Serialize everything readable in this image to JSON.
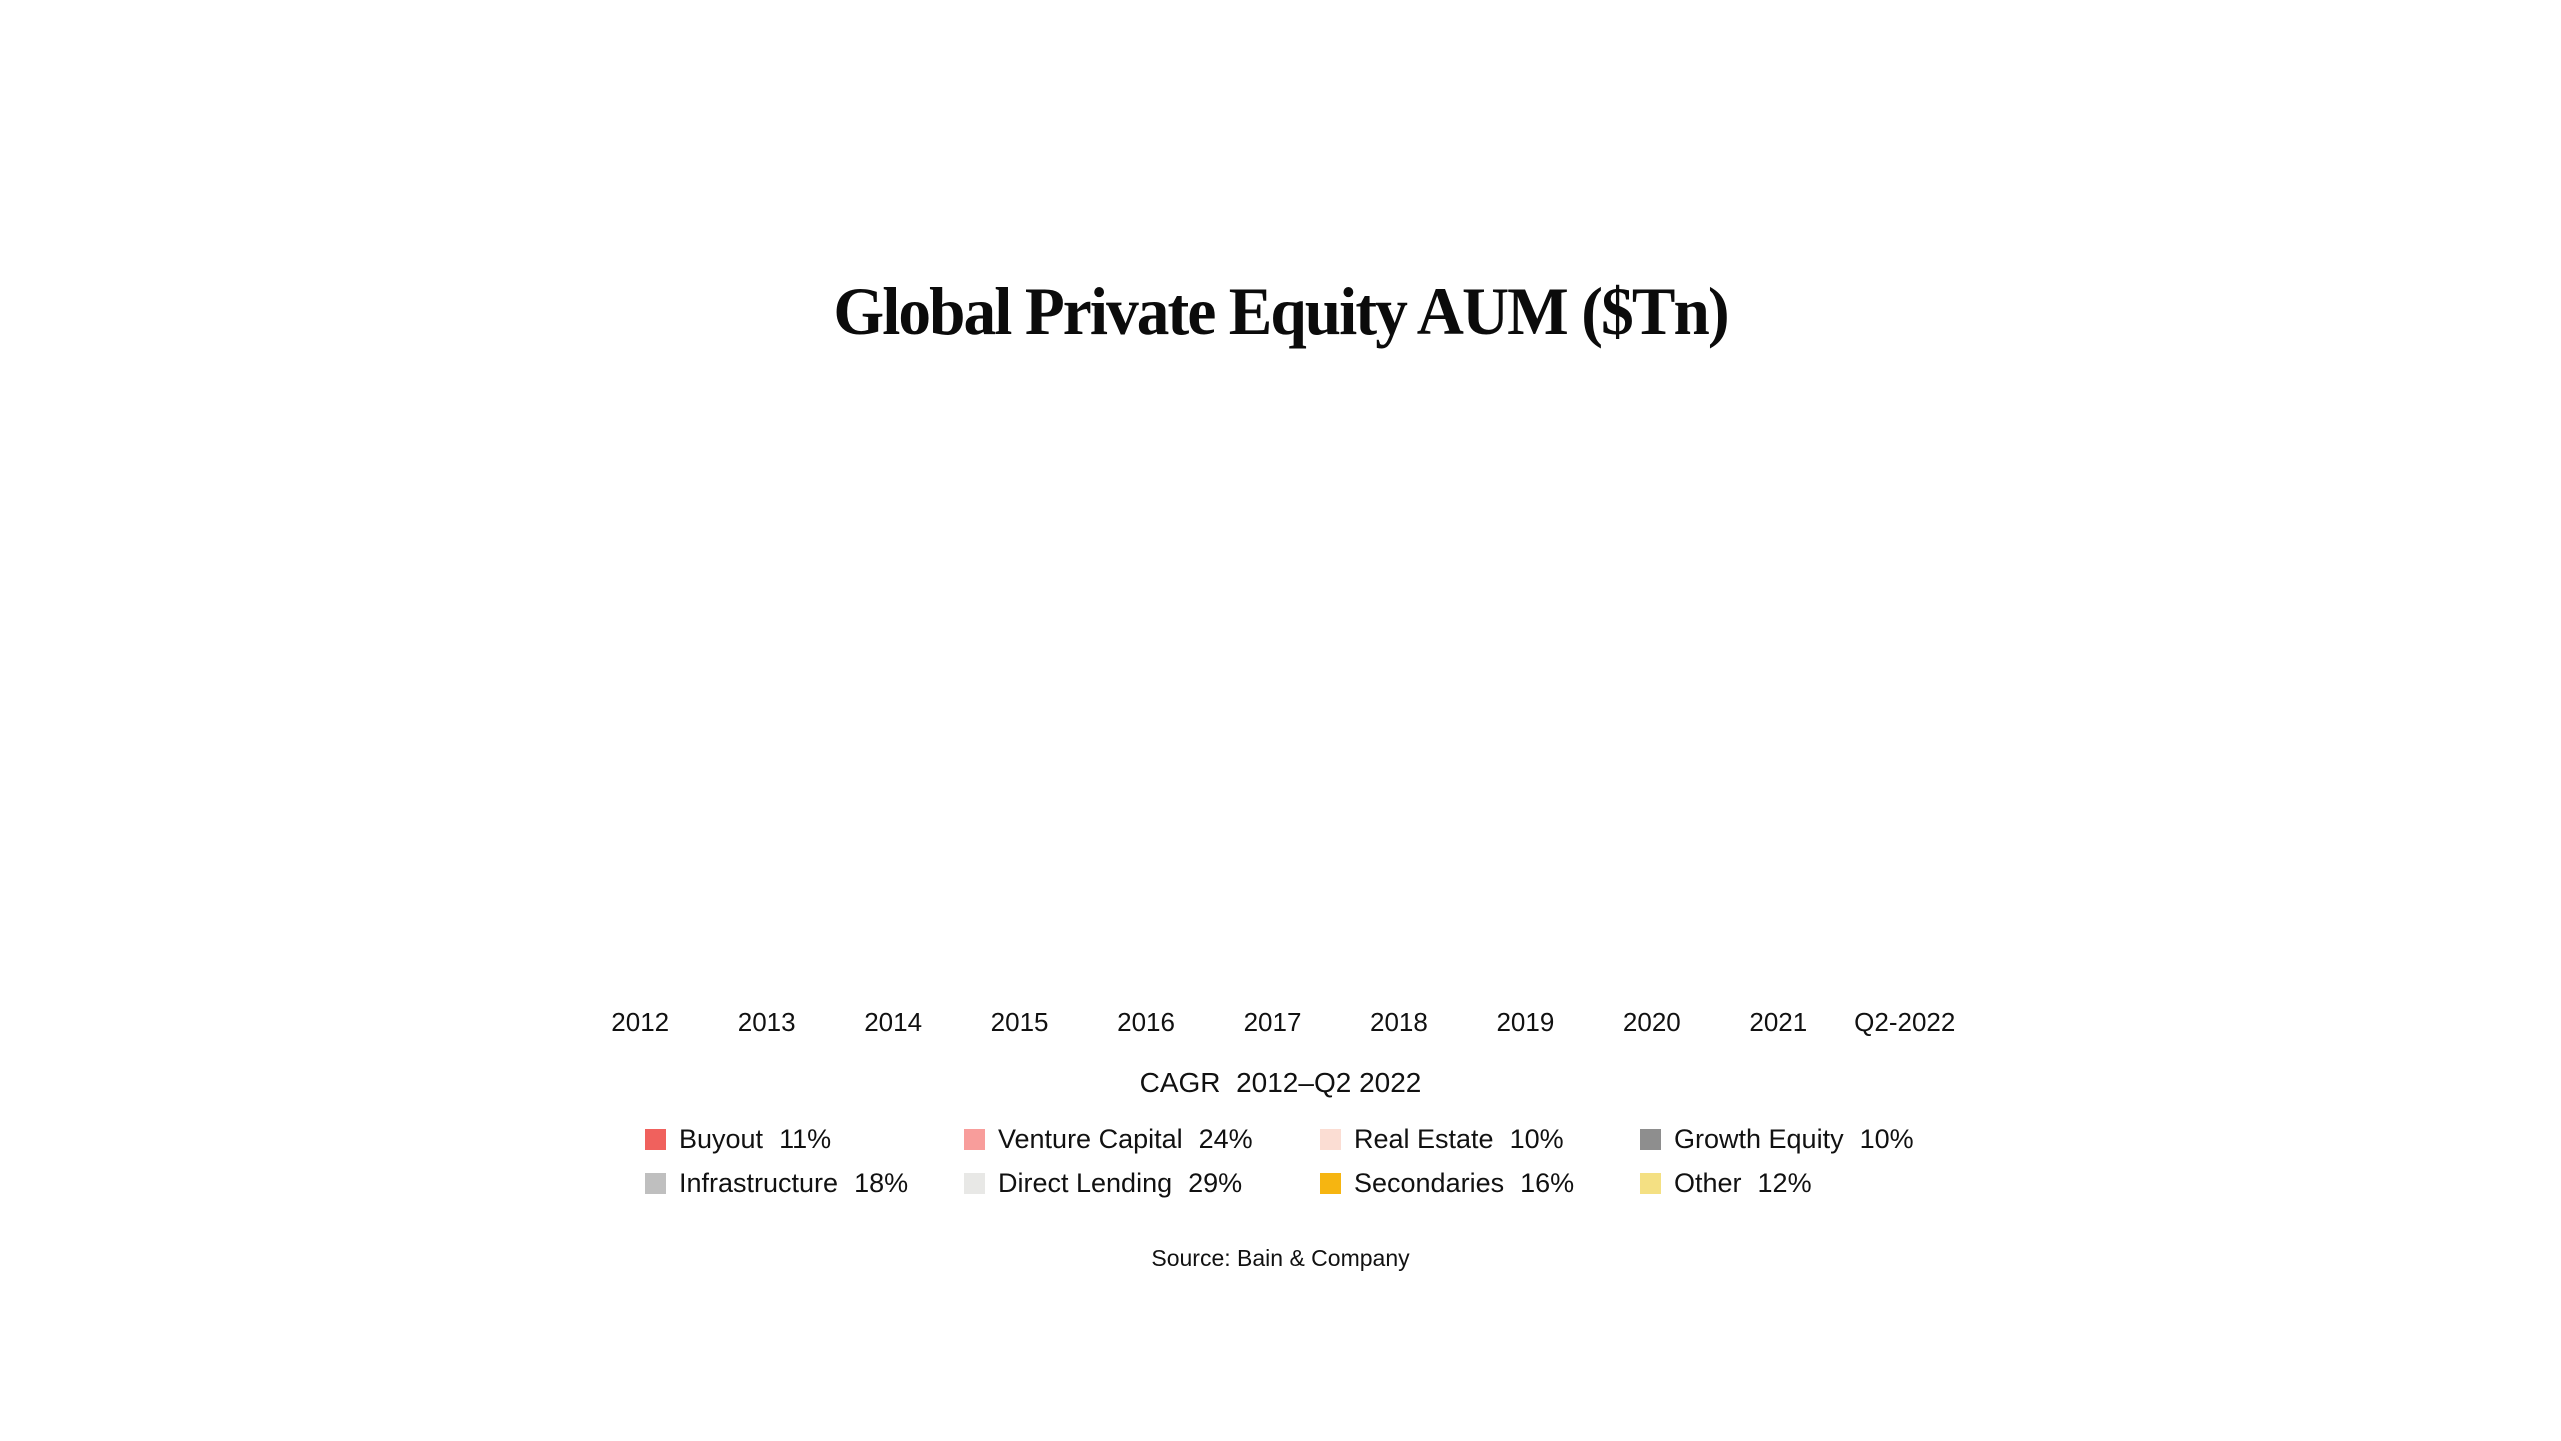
{
  "chart_data": {
    "type": "bar",
    "title": "Global Private Equity AUM ($Tn)",
    "categories": [
      "2012",
      "2013",
      "2014",
      "2015",
      "2016",
      "2017",
      "2018",
      "2019",
      "2020",
      "2021",
      "Q2-2022"
    ],
    "xlabel": "",
    "ylabel": "",
    "plot_area_empty": true,
    "grid": false,
    "legend_position": "bottom",
    "legend_title": "CAGR  2012–Q2 2022",
    "legend": [
      {
        "label": "Buyout",
        "cagr": "11%",
        "color": "#F0615D"
      },
      {
        "label": "Venture Capital",
        "cagr": "24%",
        "color": "#F89D9B"
      },
      {
        "label": "Real Estate",
        "cagr": "10%",
        "color": "#FBDDD3"
      },
      {
        "label": "Growth Equity",
        "cagr": "10%",
        "color": "#8E8E8E"
      },
      {
        "label": "Infrastructure",
        "cagr": "18%",
        "color": "#BFBFBF"
      },
      {
        "label": "Direct Lending",
        "cagr": "29%",
        "color": "#E8E8E6"
      },
      {
        "label": "Secondaries",
        "cagr": "16%",
        "color": "#F6B511"
      },
      {
        "label": "Other",
        "cagr": "12%",
        "color": "#F4E083"
      }
    ],
    "source": "Source: Bain & Company"
  }
}
